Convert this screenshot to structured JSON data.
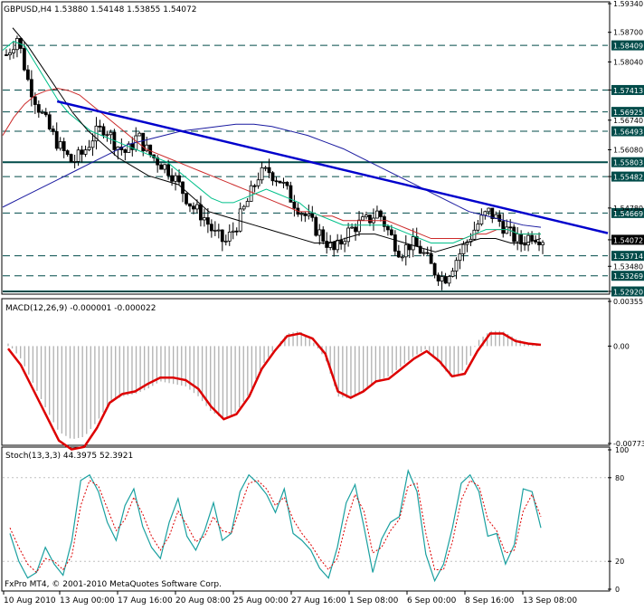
{
  "header": {
    "symbol_line": "GBPUSD,H4  1.53880 1.54148 1.53855 1.54072"
  },
  "macd": {
    "title": "MACD(12,26,9) -0.000001 -0.000022"
  },
  "stoch": {
    "title": "Stoch(13,3,3) 44.3975 52.3921"
  },
  "watermark": "FxPro MT4, © 2001-2010 MetaQuotes Software Corp.",
  "colors": {
    "trendline": "#0000cc",
    "level_lines": "#004b49",
    "ma_fast": "#00c08a",
    "ma_mid": "#cc2a2a",
    "ma_slow": "#1a1aa0",
    "ma_black": "#000000",
    "macd_signal": "#dd0000",
    "stoch_main": "#1aa0a0",
    "stoch_signal": "#dd0000"
  },
  "chart_data": [
    {
      "type": "candlestick",
      "title": "GBPUSD,H4",
      "ylim": [
        1.5292,
        1.5934
      ],
      "price_ticks": [
        "1.59340",
        "1.58700",
        "1.58040",
        "1.57413",
        "1.56740",
        "1.56080",
        "1.55482",
        "1.54780",
        "1.54072",
        "1.53480",
        "1.52920"
      ],
      "level_lines": [
        "1.58409",
        "1.57413",
        "1.56925",
        "1.56493",
        "1.55803",
        "1.55482",
        "1.54669",
        "1.53714",
        "1.53269",
        "1.52920"
      ],
      "current_price": "1.54072",
      "x_labels": [
        "10 Aug 2010",
        "13 Aug 00:00",
        "17 Aug 16:00",
        "20 Aug 08:00",
        "25 Aug 00:00",
        "27 Aug 16:00",
        "1 Sep 08:00",
        "6 Sep 00:00",
        "8 Sep 16:00",
        "13 Sep 08:00"
      ],
      "trendline": [
        {
          "x": 0.09,
          "y": 1.5716
        },
        {
          "x": 1.0,
          "y": 1.5422
        }
      ],
      "close_series": [
        1.582,
        1.586,
        1.576,
        1.57,
        1.565,
        1.561,
        1.558,
        1.56,
        1.564,
        1.566,
        1.562,
        1.56,
        1.564,
        1.56,
        1.558,
        1.556,
        1.552,
        1.548,
        1.546,
        1.542,
        1.54,
        1.544,
        1.549,
        1.555,
        1.556,
        1.554,
        1.55,
        1.547,
        1.544,
        1.541,
        1.538,
        1.542,
        1.544,
        1.545,
        1.547,
        1.542,
        1.538,
        1.54,
        1.538,
        1.534,
        1.532,
        1.536,
        1.54,
        1.544,
        1.547,
        1.545,
        1.542,
        1.54,
        1.542,
        1.541
      ],
      "ma_fast": [
        1.583,
        1.585,
        1.584,
        1.58,
        1.576,
        1.572,
        1.569,
        1.567,
        1.565,
        1.564,
        1.563,
        1.562,
        1.561,
        1.56,
        1.559,
        1.558,
        1.556,
        1.554,
        1.552,
        1.55,
        1.549,
        1.549,
        1.55,
        1.551,
        1.552,
        1.551,
        1.55,
        1.549,
        1.547,
        1.546,
        1.545,
        1.544,
        1.544,
        1.544,
        1.544,
        1.544,
        1.543,
        1.542,
        1.541,
        1.54,
        1.54,
        1.54,
        1.541,
        1.542,
        1.543,
        1.543,
        1.543,
        1.542,
        1.542,
        1.542
      ],
      "ma_mid": [
        1.564,
        1.568,
        1.571,
        1.573,
        1.574,
        1.5745,
        1.574,
        1.573,
        1.571,
        1.569,
        1.567,
        1.565,
        1.563,
        1.561,
        1.56,
        1.559,
        1.558,
        1.557,
        1.556,
        1.555,
        1.554,
        1.553,
        1.552,
        1.551,
        1.55,
        1.549,
        1.548,
        1.547,
        1.547,
        1.546,
        1.546,
        1.545,
        1.545,
        1.545,
        1.545,
        1.545,
        1.544,
        1.543,
        1.542,
        1.541,
        1.541,
        1.541,
        1.541,
        1.542,
        1.542,
        1.543,
        1.543,
        1.542,
        1.542,
        1.542
      ],
      "ma_slow": [
        1.548,
        1.55,
        1.552,
        1.554,
        1.556,
        1.558,
        1.56,
        1.562,
        1.563,
        1.564,
        1.565,
        1.5655,
        1.566,
        1.5665,
        1.5665,
        1.566,
        1.565,
        1.564,
        1.5625,
        1.561,
        1.559,
        1.557,
        1.555,
        1.553,
        1.551,
        1.549,
        1.547,
        1.546,
        1.545,
        1.544,
        1.5435
      ],
      "ma_black": [
        1.588,
        1.584,
        1.579,
        1.574,
        1.569,
        1.565,
        1.562,
        1.559,
        1.557,
        1.555,
        1.554,
        1.553,
        1.55,
        1.547,
        1.546,
        1.545,
        1.544,
        1.543,
        1.542,
        1.541,
        1.54,
        1.54,
        1.541,
        1.542,
        1.542,
        1.541,
        1.54,
        1.539,
        1.538,
        1.539,
        1.54,
        1.541,
        1.541,
        1.54,
        1.54,
        1.541
      ],
      "ma_labels": []
    },
    {
      "type": "line",
      "title": "MACD(12,26,9)",
      "ylim": [
        -0.00773,
        0.00355
      ],
      "y_ticks": [
        "0.00355",
        "0.00",
        "-0.00773"
      ],
      "signal": [
        -0.0002,
        -0.0015,
        -0.0035,
        -0.0055,
        -0.0075,
        -0.0082,
        -0.008,
        -0.0065,
        -0.0045,
        -0.0038,
        -0.0036,
        -0.003,
        -0.0025,
        -0.0025,
        -0.0027,
        -0.0034,
        -0.0048,
        -0.0058,
        -0.0054,
        -0.004,
        -0.0018,
        -0.0004,
        0.0008,
        0.001,
        0.0006,
        -0.0006,
        -0.0036,
        -0.0041,
        -0.0036,
        -0.0028,
        -0.0026,
        -0.0018,
        -0.001,
        -0.0004,
        -0.0012,
        -0.0024,
        -0.0022,
        -0.0004,
        0.001,
        0.001,
        0.0004,
        0.0002,
        0.0001
      ],
      "histogram": [
        0.0002,
        -0.001,
        -0.003,
        -0.005,
        -0.0068,
        -0.0074,
        -0.0072,
        -0.006,
        -0.0045,
        -0.004,
        -0.0038,
        -0.0034,
        -0.0028,
        -0.003,
        -0.0032,
        -0.004,
        -0.0052,
        -0.0058,
        -0.0052,
        -0.0038,
        -0.0016,
        -0.0002,
        0.001,
        0.0012,
        0.0004,
        -0.001,
        -0.004,
        -0.0042,
        -0.0036,
        -0.0028,
        -0.0024,
        -0.0016,
        -0.0008,
        -0.0002,
        -0.0014,
        -0.0026,
        -0.0018,
        0.0004,
        0.0012,
        0.0012,
        0.0006,
        0.0002,
        0.0
      ]
    },
    {
      "type": "line",
      "title": "Stoch(13,3,3)",
      "ylim": [
        0,
        100
      ],
      "y_ticks": [
        "100",
        "80",
        "20",
        "0"
      ],
      "main": [
        40,
        20,
        8,
        12,
        30,
        18,
        10,
        35,
        78,
        82,
        70,
        48,
        35,
        60,
        72,
        45,
        30,
        22,
        48,
        65,
        38,
        28,
        42,
        62,
        35,
        40,
        70,
        82,
        76,
        68,
        55,
        72,
        40,
        35,
        28,
        15,
        8,
        30,
        62,
        75,
        45,
        12,
        36,
        48,
        52,
        85,
        70,
        25,
        6,
        18,
        44,
        76,
        82,
        70,
        38,
        40,
        18,
        32,
        72,
        70,
        44
      ],
      "signal": [
        44,
        30,
        18,
        12,
        22,
        20,
        14,
        24,
        60,
        78,
        74,
        58,
        42,
        50,
        66,
        54,
        38,
        28,
        38,
        56,
        46,
        34,
        38,
        52,
        42,
        40,
        58,
        76,
        78,
        72,
        60,
        66,
        50,
        40,
        32,
        22,
        14,
        22,
        48,
        68,
        56,
        26,
        30,
        42,
        50,
        74,
        76,
        40,
        14,
        14,
        34,
        64,
        78,
        74,
        50,
        42,
        26,
        28,
        56,
        68,
        52
      ]
    }
  ]
}
